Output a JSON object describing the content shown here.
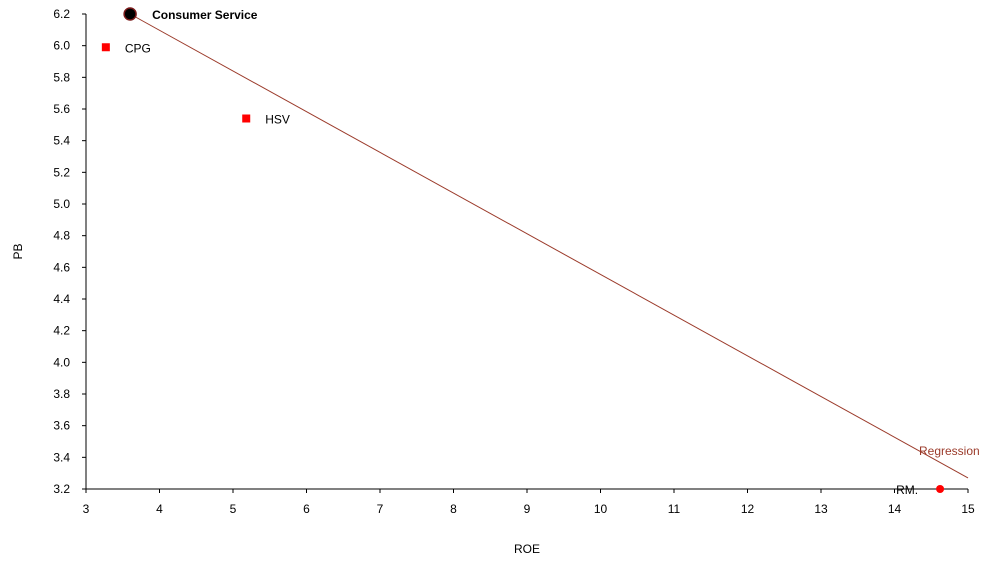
{
  "chart_data": {
    "type": "scatter",
    "xlabel": "ROE",
    "ylabel": "PB",
    "xlim": [
      3,
      15
    ],
    "ylim": [
      3.2,
      6.2
    ],
    "x_ticks": [
      "3",
      "4",
      "5",
      "6",
      "7",
      "8",
      "9",
      "10",
      "11",
      "12",
      "13",
      "14",
      "15"
    ],
    "y_ticks": [
      "3.2",
      "3.4",
      "3.6",
      "3.8",
      "4.0",
      "4.2",
      "4.4",
      "4.6",
      "4.8",
      "5.0",
      "5.2",
      "5.4",
      "5.6",
      "5.8",
      "6.0",
      "6.2"
    ],
    "grid": false,
    "points": [
      {
        "label": "Consumer Service",
        "x": 3.6,
        "y": 6.2,
        "marker": "circle-large",
        "color": "#000000",
        "highlight": true
      },
      {
        "label": "CPG",
        "x": 3.27,
        "y": 5.99,
        "marker": "square",
        "color": "#ff0000"
      },
      {
        "label": "HSV",
        "x": 5.18,
        "y": 5.54,
        "marker": "square",
        "color": "#ff0000"
      },
      {
        "label": "RM.",
        "x": 14.62,
        "y": 3.2,
        "marker": "circle",
        "color": "#ff0000"
      }
    ],
    "regression": {
      "label": "Regression",
      "color": "#9b3a2a",
      "start": [
        3.6,
        6.2
      ],
      "end": [
        15,
        3.27
      ]
    }
  }
}
